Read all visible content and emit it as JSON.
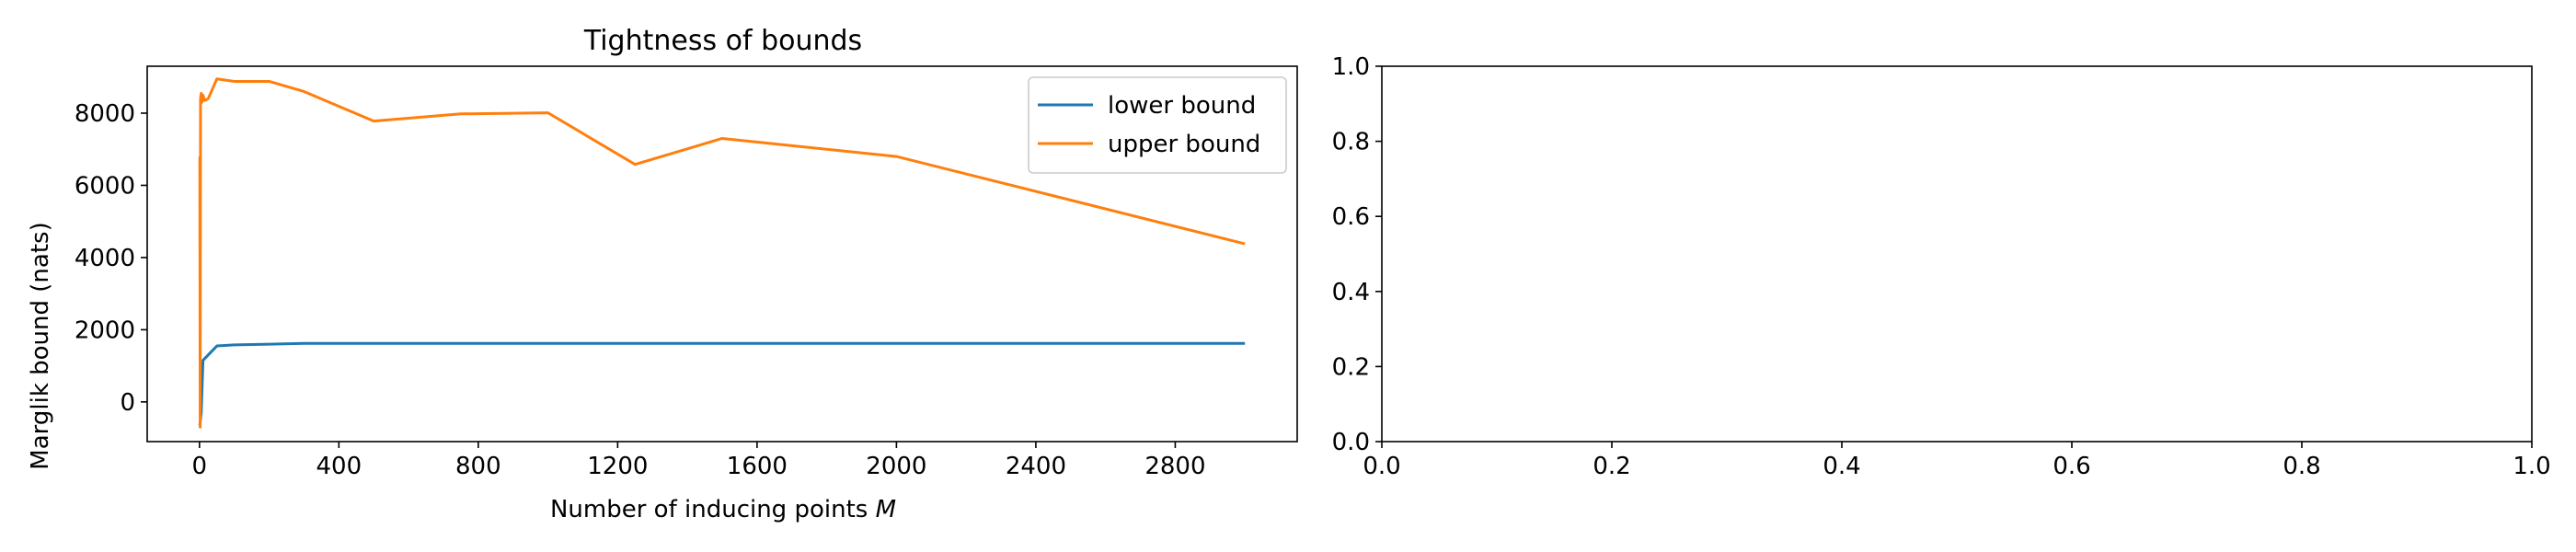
{
  "chart_data": [
    {
      "type": "line",
      "title": "Tightness of bounds",
      "xlabel": "Number of inducing points",
      "xlabel_math": "M",
      "ylabel": "Marglik bound (nats)",
      "xlim": [
        -150,
        3150
      ],
      "ylim": [
        -1100,
        9300
      ],
      "xticks": [
        0,
        400,
        800,
        1200,
        1600,
        2000,
        2400,
        2800
      ],
      "xtick_labels": [
        "0",
        "400",
        "800",
        "1200",
        "1600",
        "2000",
        "2400",
        "2800"
      ],
      "yticks": [
        0,
        2000,
        4000,
        6000,
        8000
      ],
      "ytick_labels": [
        "0",
        "2000",
        "4000",
        "6000",
        "8000"
      ],
      "grid": false,
      "legend": "upper right",
      "series": [
        {
          "name": "lower bound",
          "color": "#1f77b4",
          "x": [
            1,
            5,
            10,
            25,
            50,
            100,
            200,
            300,
            500,
            750,
            1000,
            1250,
            1500,
            2000,
            3000
          ],
          "y": [
            -650,
            -300,
            1150,
            1300,
            1550,
            1580,
            1600,
            1620,
            1620,
            1620,
            1620,
            1620,
            1620,
            1620,
            1620
          ]
        },
        {
          "name": "upper bound",
          "color": "#ff7f0e",
          "x": [
            1,
            2,
            3,
            5,
            7,
            10,
            15,
            25,
            50,
            100,
            200,
            300,
            500,
            750,
            1000,
            1250,
            1500,
            2000,
            3000
          ],
          "y": [
            6800,
            -700,
            8400,
            8550,
            8300,
            8500,
            8350,
            8400,
            8950,
            8880,
            8880,
            8600,
            7780,
            7980,
            8010,
            6580,
            7300,
            6800,
            4380
          ]
        }
      ]
    },
    {
      "type": "line",
      "title": "",
      "xlim": [
        0,
        1
      ],
      "ylim": [
        0,
        1
      ],
      "xticks": [
        0,
        0.2,
        0.4,
        0.6,
        0.8,
        1
      ],
      "xtick_labels": [
        "0.0",
        "0.2",
        "0.4",
        "0.6",
        "0.8",
        "1.0"
      ],
      "yticks": [
        0,
        0.2,
        0.4,
        0.6,
        0.8,
        1
      ],
      "ytick_labels": [
        "0.0",
        "0.2",
        "0.4",
        "0.6",
        "0.8",
        "1.0"
      ],
      "grid": false,
      "series": []
    }
  ]
}
